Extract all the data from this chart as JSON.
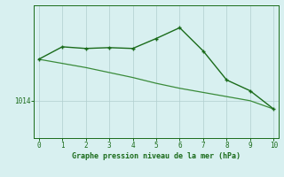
{
  "x": [
    0,
    1,
    2,
    3,
    4,
    5,
    6,
    7,
    8,
    9,
    10
  ],
  "line1_y": [
    1019.0,
    1020.5,
    1020.3,
    1020.4,
    1020.3,
    1021.5,
    1022.8,
    1020.0,
    1016.5,
    1015.2,
    1013.0
  ],
  "line2_y": [
    1019.0,
    1018.5,
    1018.0,
    1017.4,
    1016.8,
    1016.1,
    1015.5,
    1015.0,
    1014.5,
    1014.0,
    1013.0
  ],
  "line_color": "#1a6b1a",
  "line2_color": "#3a8b3a",
  "bg_color": "#d8f0f0",
  "grid_color": "#b0cece",
  "xlabel": "Graphe pression niveau de la mer (hPa)",
  "ytick_labels": [
    "1014"
  ],
  "ytick_values": [
    1014
  ],
  "xlim": [
    -0.2,
    10.2
  ],
  "ylim": [
    1009.5,
    1025.5
  ],
  "title": ""
}
